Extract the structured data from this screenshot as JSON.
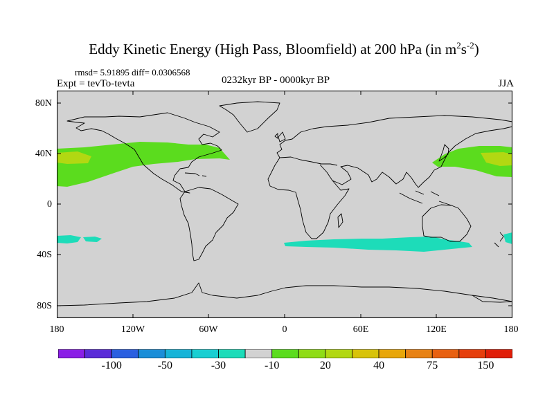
{
  "title": {
    "prefix": "Eddy Kinetic Energy (High Pass, Bloomfield) at 200 hPa (in m",
    "sup1": "2",
    "mid": "s",
    "sup2": "-2",
    "suffix": ")"
  },
  "stats_line": "rmsd= 5.91895 diff= 0.0306568",
  "experiment": "Expt = tevTo-tevta",
  "period": "0232kyr BP - 0000kyr BP",
  "season": "JJA",
  "colors": {
    "land_ocean_background": "#d2d2d2",
    "coastline": "#000000",
    "green_band": "#5bdc1e",
    "yellow_green_core": "#b2d812",
    "teal_band": "#1ddcb9"
  },
  "map": {
    "projection": "cylindrical-equidistant",
    "lon_range": [
      -180,
      180
    ],
    "lat_range": [
      -90,
      90
    ],
    "lat_tick_labels": [
      "80N",
      "40N",
      "0",
      "40S",
      "80S"
    ],
    "lon_tick_labels": [
      "180",
      "120W",
      "60W",
      "0",
      "60E",
      "120E",
      "180"
    ]
  },
  "colorbar": {
    "colors": [
      "#8a1ee6",
      "#5a2bd8",
      "#2a5fe0",
      "#1a8ed8",
      "#16b4d8",
      "#18cfd2",
      "#1ddcb9",
      "#d2d2d2",
      "#5bdc1e",
      "#8fdc16",
      "#b2d812",
      "#d8c30a",
      "#e8a60a",
      "#e88214",
      "#e86010",
      "#e63e0c",
      "#e01e08"
    ],
    "labels": [
      "-100",
      "-50",
      "-30",
      "-10",
      "20",
      "40",
      "75",
      "150"
    ]
  }
}
